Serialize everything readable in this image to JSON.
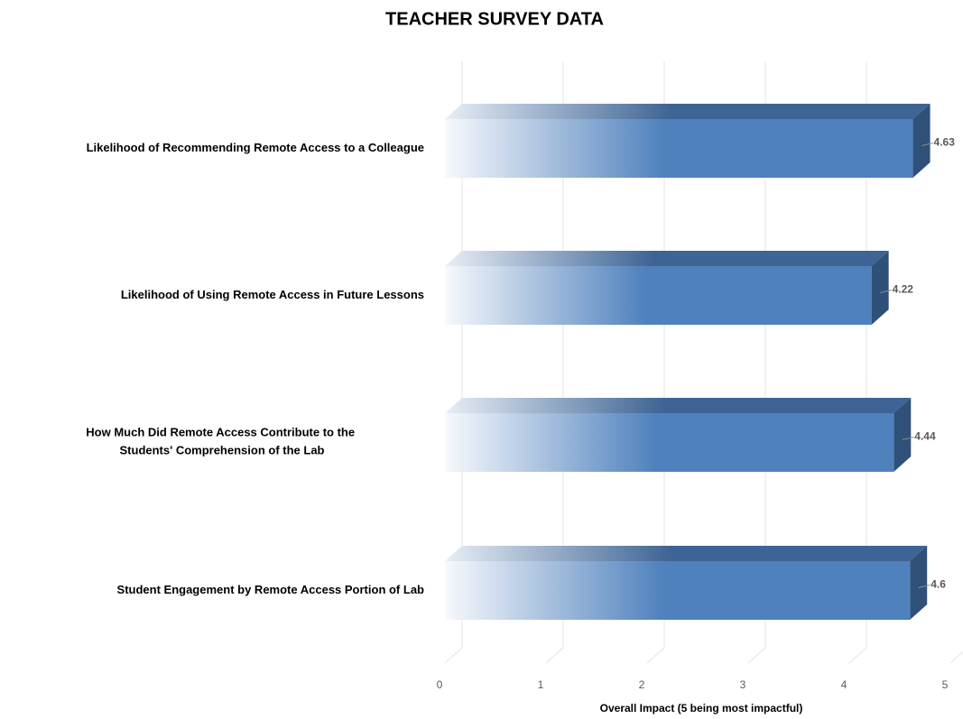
{
  "chart_data": {
    "type": "bar3d",
    "orientation": "horizontal",
    "title": "TEACHER SURVEY DATA",
    "categories": [
      "Likelihood of Recommending Remote Access to a Colleague",
      "Likelihood of Using Remote Access in Future Lessons",
      "How Much Did Remote Access Contribute to the Students' Comprehension of the Lab",
      "Student Engagement by Remote Access Portion of Lab"
    ],
    "values": [
      4.63,
      4.22,
      4.44,
      4.6
    ],
    "color": "#4f81bd",
    "xlabel": "Overall Impact (5 being most impactful)",
    "xlim": [
      0,
      5
    ],
    "xticks": [
      0,
      1,
      2,
      3,
      4,
      5
    ],
    "grid": true
  }
}
